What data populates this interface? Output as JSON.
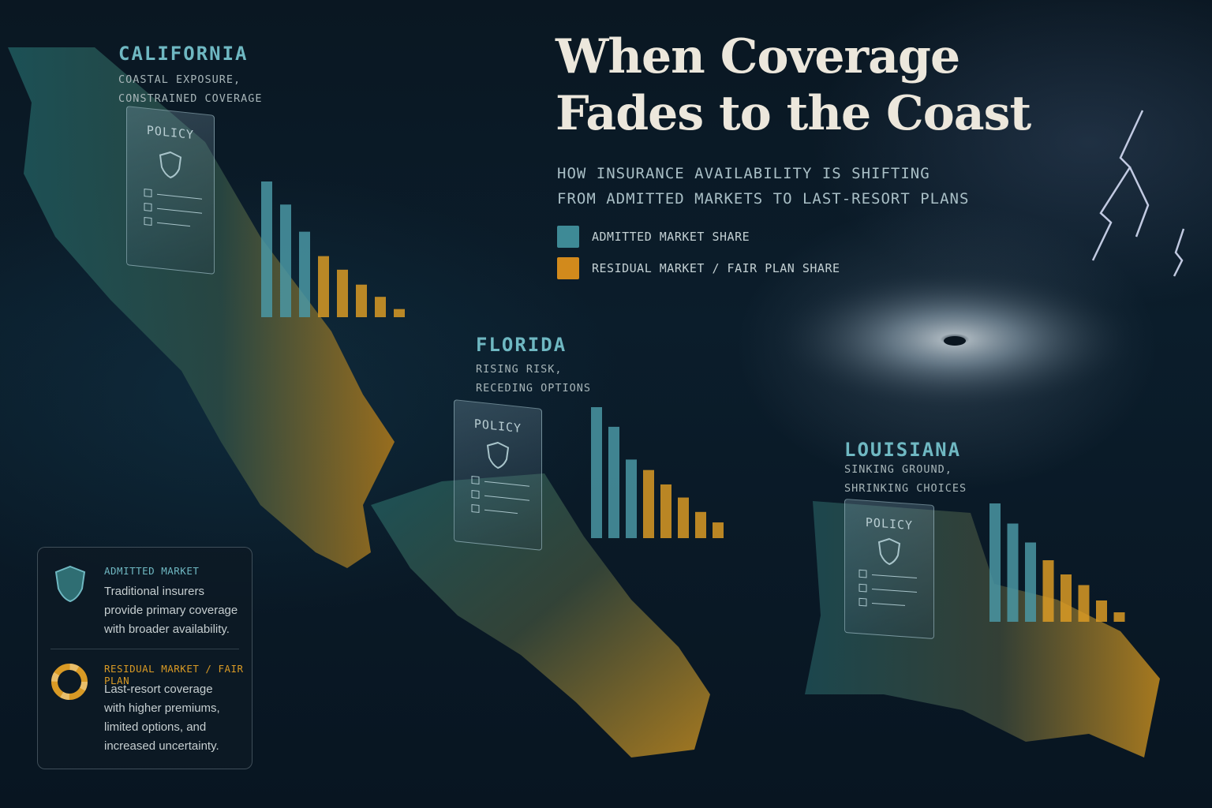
{
  "title": "When Coverage Fades to the Coast",
  "subtitle_lines": [
    "HOW INSURANCE AVAILABILITY IS SHIFTING",
    "FROM ADMITTED MARKETS TO LAST-RESORT PLANS"
  ],
  "legend": [
    {
      "label": "ADMITTED MARKET SHARE",
      "color": "#3e8a96"
    },
    {
      "label": "RESIDUAL MARKET / FAIR PLAN SHARE",
      "color": "#d28a1c"
    }
  ],
  "colors": {
    "admitted": "#4a97a3",
    "residual": "#d99a25",
    "accent_text": "#6fb8c2"
  },
  "policy_label": "POLICY",
  "states": [
    {
      "name": "CALIFORNIA",
      "sub": [
        "COASTAL EXPOSURE,",
        "CONSTRAINED COVERAGE"
      ]
    },
    {
      "name": "FLORIDA",
      "sub": [
        "RISING RISK,",
        "RECEDING OPTIONS"
      ]
    },
    {
      "name": "LOUISIANA",
      "sub": [
        "SINKING GROUND,",
        "SHRINKING CHOICES"
      ]
    }
  ],
  "panel": {
    "admitted_head": "ADMITTED MARKET",
    "admitted_text": [
      "Traditional insurers",
      "provide primary coverage",
      "with broader availability."
    ],
    "residual_head": "RESIDUAL MARKET / FAIR PLAN",
    "residual_text": [
      "Last-resort coverage",
      "with higher premiums,",
      "limited options, and",
      "increased uncertainty."
    ]
  },
  "icons": [
    "shield-icon",
    "life-ring-icon",
    "lightning-icon",
    "hurricane-icon",
    "house-icon",
    "check-icon"
  ],
  "chart_data": [
    {
      "type": "bar",
      "state": "CALIFORNIA",
      "values": [
        100,
        83,
        63,
        45,
        35,
        24,
        15,
        6
      ],
      "series_colors": [
        "admitted",
        "admitted",
        "admitted",
        "residual",
        "residual",
        "residual",
        "residual",
        "residual"
      ]
    },
    {
      "type": "bar",
      "state": "FLORIDA",
      "values": [
        100,
        85,
        60,
        52,
        41,
        31,
        20,
        12
      ],
      "series_colors": [
        "admitted",
        "admitted",
        "admitted",
        "residual",
        "residual",
        "residual",
        "residual",
        "residual"
      ]
    },
    {
      "type": "bar",
      "state": "LOUISIANA",
      "values": [
        100,
        83,
        67,
        52,
        40,
        31,
        18,
        8
      ],
      "series_colors": [
        "admitted",
        "admitted",
        "admitted",
        "residual",
        "residual",
        "residual",
        "residual",
        "residual"
      ]
    }
  ]
}
